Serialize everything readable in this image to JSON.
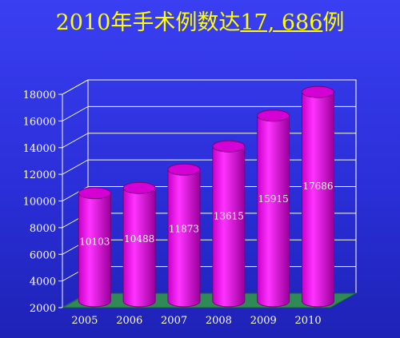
{
  "title": {
    "prefix": "2010年手术例数达",
    "highlight": "17, 686",
    "suffix": "例"
  },
  "chart_data": {
    "type": "bar",
    "categories": [
      "2005",
      "2006",
      "2007",
      "2008",
      "2009",
      "2010"
    ],
    "values": [
      10103,
      10488,
      11873,
      13615,
      15915,
      17686
    ],
    "data_labels": [
      "10103",
      "10488",
      "11873",
      "13615",
      "15915",
      "17686"
    ],
    "yticks": [
      "2000",
      "4000",
      "6000",
      "8000",
      "10000",
      "12000",
      "14000",
      "16000",
      "18000"
    ],
    "ylim": [
      2000,
      18000
    ],
    "grid": true,
    "bar_color": "#ee11ee",
    "floor_color": "#2e8b57"
  }
}
